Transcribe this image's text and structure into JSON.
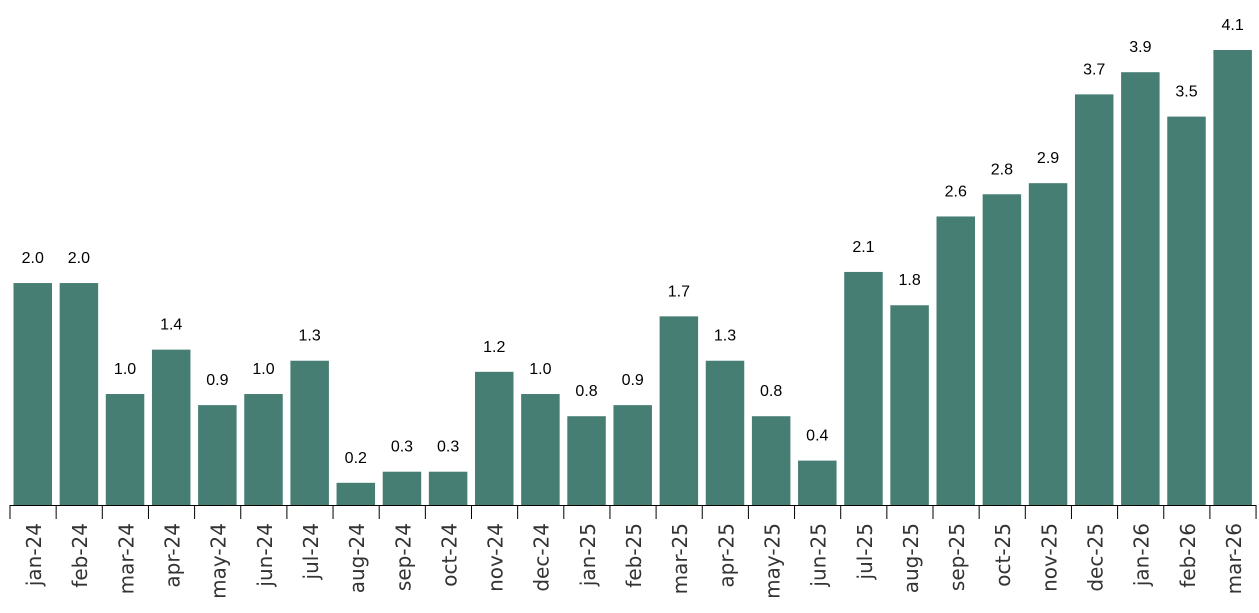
{
  "chart_data": {
    "type": "bar",
    "categories": [
      "jan-24",
      "feb-24",
      "mar-24",
      "apr-24",
      "may-24",
      "jun-24",
      "jul-24",
      "aug-24",
      "sep-24",
      "oct-24",
      "nov-24",
      "dec-24",
      "jan-25",
      "feb-25",
      "mar-25",
      "apr-25",
      "may-25",
      "jun-25",
      "jul-25",
      "aug-25",
      "sep-25",
      "oct-25",
      "nov-25",
      "dec-25",
      "jan-26",
      "feb-26",
      "mar-26"
    ],
    "values": [
      2.0,
      2.0,
      1.0,
      1.4,
      0.9,
      1.0,
      1.3,
      0.2,
      0.3,
      0.3,
      1.2,
      1.0,
      0.8,
      0.9,
      1.7,
      1.3,
      0.8,
      0.4,
      2.1,
      1.8,
      2.6,
      2.8,
      2.9,
      3.7,
      3.9,
      3.5,
      4.1
    ],
    "value_labels": [
      "2.0",
      "2.0",
      "1.0",
      "1.4",
      "0.9",
      "1.0",
      "1.3",
      "0.2",
      "0.3",
      "0.3",
      "1.2",
      "1.0",
      "0.8",
      "0.9",
      "1.7",
      "1.3",
      "0.8",
      "0.4",
      "2.1",
      "1.8",
      "2.6",
      "2.8",
      "2.9",
      "3.7",
      "3.9",
      "3.5",
      "4.1"
    ],
    "title": "",
    "xlabel": "",
    "ylabel": "",
    "ylim": [
      0,
      4.1
    ],
    "grid": false,
    "legend": "none",
    "colors": {
      "bar": "#477e74",
      "axis": "#000000",
      "tick_label": "#333333",
      "data_label": "#000000"
    }
  }
}
